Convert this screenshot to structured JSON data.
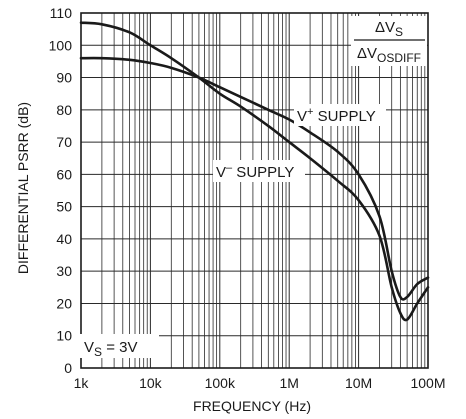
{
  "chart_data": {
    "type": "line",
    "xlabel": "FREQUENCY (Hz)",
    "ylabel": "DIFFERENTIAL PSRR (dB)",
    "x_scale": "log",
    "xlim": [
      1000,
      100000000
    ],
    "ylim": [
      0,
      110
    ],
    "grid": true,
    "x_ticks": [
      1000,
      10000,
      100000,
      1000000,
      10000000,
      100000000
    ],
    "x_tick_labels": [
      "1k",
      "10k",
      "100k",
      "1M",
      "10M",
      "100M"
    ],
    "y_ticks": [
      0,
      10,
      20,
      30,
      40,
      50,
      60,
      70,
      80,
      90,
      100,
      110
    ],
    "y_tick_labels": [
      "0",
      "10",
      "20",
      "30",
      "40",
      "50",
      "60",
      "70",
      "80",
      "90",
      "100",
      "110"
    ],
    "series": [
      {
        "name": "V+ SUPPLY",
        "label_main": "V",
        "label_sup": "+",
        "label_rest": " SUPPLY",
        "x": [
          1000,
          2000,
          5000,
          10000,
          20000,
          50000,
          100000,
          200000,
          500000,
          1000000,
          2000000,
          5000000,
          10000000,
          20000000,
          30000000,
          40000000,
          50000000,
          70000000,
          100000000
        ],
        "y": [
          96,
          96,
          95.5,
          94.5,
          93,
          90,
          87,
          84,
          80,
          77,
          73,
          67,
          60,
          47,
          30,
          22,
          22,
          26,
          28
        ]
      },
      {
        "name": "V– SUPPLY",
        "label_main": "V",
        "label_sup": "–",
        "label_rest": " SUPPLY",
        "x": [
          1000,
          2000,
          5000,
          10000,
          20000,
          50000,
          100000,
          200000,
          500000,
          1000000,
          2000000,
          5000000,
          10000000,
          20000000,
          30000000,
          40000000,
          50000000,
          70000000,
          100000000
        ],
        "y": [
          107,
          106.5,
          104,
          100,
          96,
          90,
          85,
          81,
          75,
          70,
          65,
          58,
          52,
          41,
          25,
          17,
          15,
          20,
          25
        ]
      }
    ],
    "annotations": {
      "ratio_top_main": "ΔV",
      "ratio_top_sub": "S",
      "ratio_bottom_main": "ΔV",
      "ratio_bottom_sub": "OSDIFF",
      "supply_main": "V",
      "supply_sub": "S",
      "supply_rest": " = 3V"
    }
  }
}
